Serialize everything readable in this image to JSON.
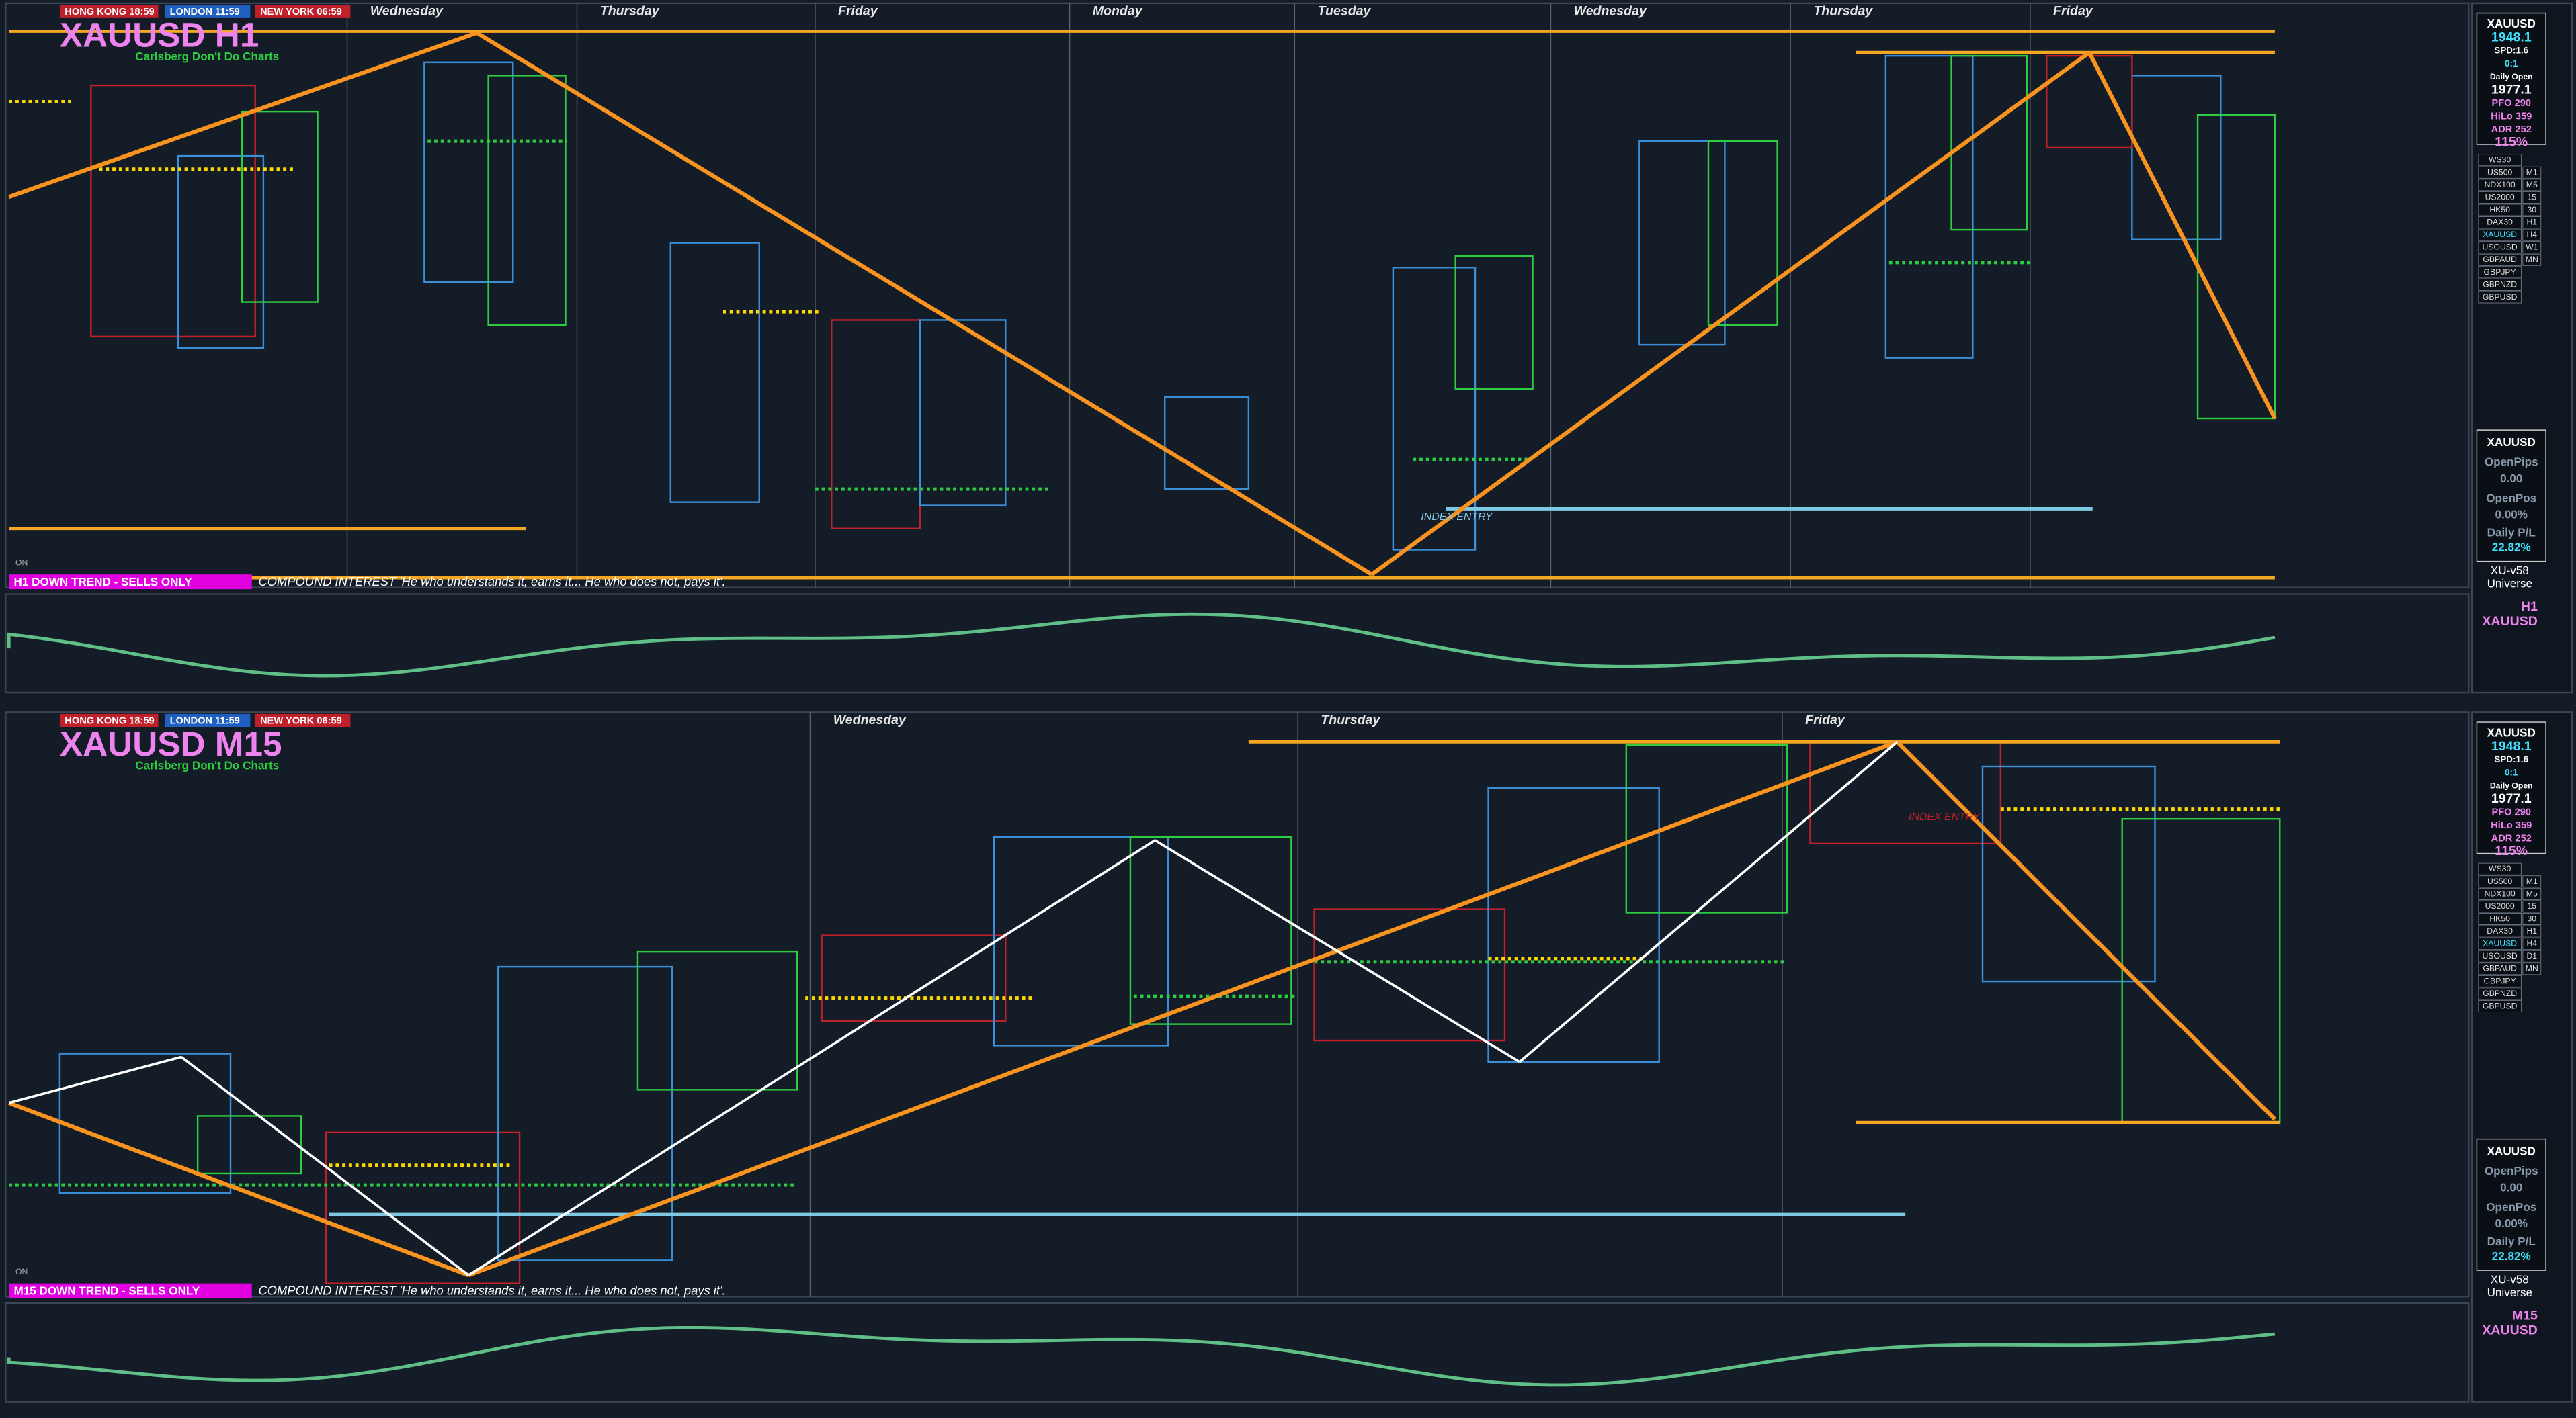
{
  "panels": [
    {
      "title": "XAUUSD H1",
      "subtitle": "Carlsberg Don't Do Charts",
      "sessions": [
        "HONG KONG 18:59",
        "LONDON 11:59",
        "NEW YORK 06:59"
      ],
      "days": [
        "Wednesday",
        "Thursday",
        "Friday",
        "Monday",
        "Tuesday",
        "Wednesday",
        "Thursday",
        "Friday"
      ],
      "trend": "H1  DOWN TREND - SELLS ONLY",
      "quote": "COMPOUND INTEREST 'He who understands it, earns it... He who does not, pays it'.",
      "annotation": "INDEX ENTRY",
      "toggle": "ON",
      "indicator_labels": [
        "H1",
        "XAUUSD"
      ],
      "info": {
        "symbol": "XAUUSD",
        "price": "1948.1",
        "spread": "SPD:1.6",
        "ratio": "0:1",
        "open_label": "Daily Open",
        "open": "1977.1",
        "pfo": "PFO 290",
        "hilo": "HiLo 359",
        "adr": "ADR 252",
        "adr_pct": "115%"
      },
      "symbols": [
        "WS30",
        "US500",
        "NDX100",
        "US2000",
        "HK50",
        "DAX30",
        "XAUUSD",
        "USOUSD",
        "GBPAUD",
        "GBPJPY",
        "GBPNZD",
        "GBPUSD"
      ],
      "timeframes": [
        "M1",
        "M5",
        "15",
        "30",
        "H1",
        "H4",
        "W1",
        "MN"
      ],
      "account": {
        "symbol": "XAUUSD",
        "pips_label": "OpenPips",
        "pips": "0.00",
        "pos_label": "OpenPos",
        "pos": "0.00%",
        "pl_label": "Daily P/L",
        "pl": "22.82%",
        "version": "XU-v58",
        "universe": "Universe"
      }
    },
    {
      "title": "XAUUSD M15",
      "subtitle": "Carlsberg Don't Do Charts",
      "sessions": [
        "HONG KONG 18:59",
        "LONDON 11:59",
        "NEW YORK 06:59"
      ],
      "days": [
        "Wednesday",
        "Thursday",
        "Friday"
      ],
      "trend": "M15  DOWN TREND - SELLS ONLY",
      "quote": "COMPOUND INTEREST 'He who understands it, earns it... He who does not, pays it'.",
      "annotation": "INDEX ENTRY",
      "toggle": "ON",
      "indicator_labels": [
        "M15",
        "XAUUSD"
      ],
      "info": {
        "symbol": "XAUUSD",
        "price": "1948.1",
        "spread": "SPD:1.6",
        "ratio": "0:1",
        "open_label": "Daily Open",
        "open": "1977.1",
        "pfo": "PFO 290",
        "hilo": "HiLo 359",
        "adr": "ADR 252",
        "adr_pct": "115%"
      },
      "symbols": [
        "WS30",
        "US500",
        "NDX100",
        "US2000",
        "HK50",
        "DAX30",
        "XAUUSD",
        "USOUSD",
        "GBPAUD",
        "GBPJPY",
        "GBPNZD",
        "GBPUSD"
      ],
      "timeframes": [
        "M1",
        "M5",
        "15",
        "30",
        "H1",
        "H4",
        "D1",
        "MN"
      ],
      "account": {
        "symbol": "XAUUSD",
        "pips_label": "OpenPips",
        "pips": "0.00",
        "pos_label": "OpenPos",
        "pos": "0.00%",
        "pl_label": "Daily P/L",
        "pl": "22.82%",
        "version": "XU-v58",
        "universe": "Universe"
      }
    }
  ]
}
